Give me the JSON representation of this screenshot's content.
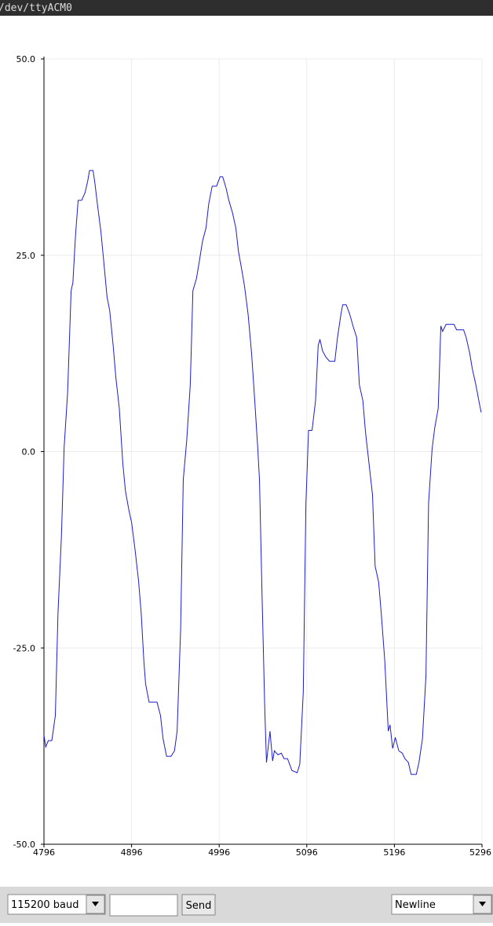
{
  "window_title": "/dev/ttyACM0",
  "controls": {
    "baud": "115200 baud",
    "send": "Send",
    "line_ending": "Newline"
  },
  "chart_data": {
    "type": "line",
    "grid": true,
    "xlim": [
      4796,
      5296
    ],
    "xticks": [
      4796,
      4896,
      4996,
      5096,
      5196,
      5296
    ],
    "ylim": [
      -50,
      50
    ],
    "yticks": [
      {
        "value": -50,
        "label": "-50.0"
      },
      {
        "value": -25,
        "label": "-25.0"
      },
      {
        "value": 0,
        "label": "0.0"
      },
      {
        "value": 25,
        "label": "25.0"
      },
      {
        "value": 50,
        "label": "50.0"
      }
    ],
    "series": [
      {
        "color": "#1c1cd0",
        "x": [
          4796,
          4798,
          4801,
          4805,
          4809,
          4812,
          4816,
          4819,
          4823,
          4827,
          4829,
          4832,
          4835,
          4839,
          4843,
          4846,
          4848,
          4852,
          4854,
          4857,
          4861,
          4864,
          4868,
          4871,
          4875,
          4878,
          4882,
          4886,
          4889,
          4893,
          4896,
          4900,
          4904,
          4907,
          4910,
          4912,
          4916,
          4921,
          4925,
          4929,
          4932,
          4936,
          4941,
          4945,
          4948,
          4952,
          4955,
          4959,
          4963,
          4966,
          4970,
          4973,
          4977,
          4981,
          4984,
          4988,
          4993,
          4997,
          5000,
          5004,
          5007,
          5011,
          5015,
          5018,
          5022,
          5025,
          5029,
          5033,
          5036,
          5040,
          5042,
          5045,
          5048,
          5050,
          5054,
          5057,
          5059,
          5063,
          5067,
          5070,
          5074,
          5079,
          5085,
          5088,
          5092,
          5095,
          5098,
          5102,
          5106,
          5109,
          5111,
          5114,
          5118,
          5122,
          5128,
          5131,
          5135,
          5137,
          5141,
          5145,
          5149,
          5153,
          5156,
          5160,
          5163,
          5167,
          5171,
          5174,
          5178,
          5181,
          5185,
          5189,
          5191,
          5194,
          5197,
          5201,
          5205,
          5208,
          5212,
          5215,
          5221,
          5224,
          5228,
          5232,
          5235,
          5239,
          5242,
          5246,
          5249,
          5251,
          5255,
          5264,
          5267,
          5275,
          5278,
          5282,
          5285,
          5289,
          5292,
          5295
        ],
        "values": [
          -36.1,
          -37.6,
          -36.8,
          -36.8,
          -33.6,
          -20.6,
          -10.6,
          0.5,
          7.5,
          20.5,
          21.5,
          27.5,
          32,
          32,
          33,
          34.5,
          35.8,
          35.8,
          34.3,
          31.5,
          28,
          24.5,
          19.7,
          18,
          13.5,
          9.5,
          5.5,
          -1.5,
          -5,
          -7.5,
          -9,
          -12.5,
          -16.5,
          -20.6,
          -26.6,
          -29.6,
          -31.9,
          -31.9,
          -31.9,
          -33.6,
          -36.6,
          -38.8,
          -38.8,
          -38.1,
          -35.6,
          -22.6,
          -3.6,
          1.5,
          8.5,
          20.5,
          22,
          24,
          26.8,
          28.5,
          31.5,
          33.8,
          33.8,
          35,
          35,
          33.5,
          32,
          30.5,
          28.5,
          25.5,
          23,
          21,
          17.5,
          12.5,
          7.5,
          0.5,
          -3.6,
          -18.6,
          -32.6,
          -39.6,
          -35.6,
          -39.4,
          -38.1,
          -38.6,
          -38.4,
          -39.1,
          -39.1,
          -40.6,
          -40.9,
          -39.8,
          -30.6,
          -6.6,
          2.7,
          2.7,
          6.5,
          13.5,
          14.3,
          12.8,
          12,
          11.5,
          11.5,
          14.5,
          17.5,
          18.7,
          18.7,
          17.5,
          15.9,
          14.5,
          8.5,
          6.5,
          2.5,
          -1.5,
          -5.5,
          -14.6,
          -16.6,
          -20.6,
          -26.6,
          -35.6,
          -34.8,
          -37.8,
          -36.4,
          -38.1,
          -38.4,
          -39.1,
          -39.6,
          -41.1,
          -41.1,
          -39.6,
          -36.6,
          -28.6,
          -6.6,
          0.3,
          3,
          5.5,
          16,
          15.3,
          16.2,
          16.2,
          15.5,
          15.5,
          14.5,
          12.5,
          10.5,
          8.5,
          6.7,
          5
        ]
      }
    ]
  }
}
